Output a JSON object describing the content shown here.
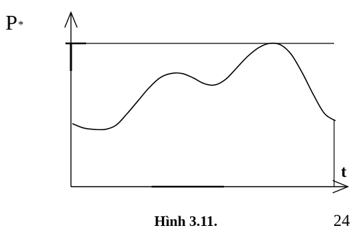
{
  "chart_data": {
    "type": "line",
    "ylabel": "P",
    "ylabel_subscript": "*",
    "xlabel": "t",
    "x_end_label": "24",
    "caption": "Hình 3.11.",
    "xlim": [
      0,
      24
    ],
    "ylim": [
      0,
      1
    ],
    "grid": false,
    "legend": "none",
    "max_level": 1.0,
    "series": [
      {
        "x": [
          0,
          1,
          2,
          3,
          4,
          5,
          6,
          7,
          8,
          9,
          10,
          11,
          12,
          13,
          14,
          15,
          16,
          17,
          18,
          19,
          20,
          21,
          22,
          23,
          24
        ],
        "values": [
          0.44,
          0.41,
          0.4,
          0.4,
          0.43,
          0.51,
          0.6,
          0.69,
          0.76,
          0.79,
          0.79,
          0.76,
          0.72,
          0.71,
          0.75,
          0.83,
          0.91,
          0.97,
          1.0,
          0.99,
          0.92,
          0.79,
          0.64,
          0.51,
          0.46
        ]
      }
    ]
  }
}
